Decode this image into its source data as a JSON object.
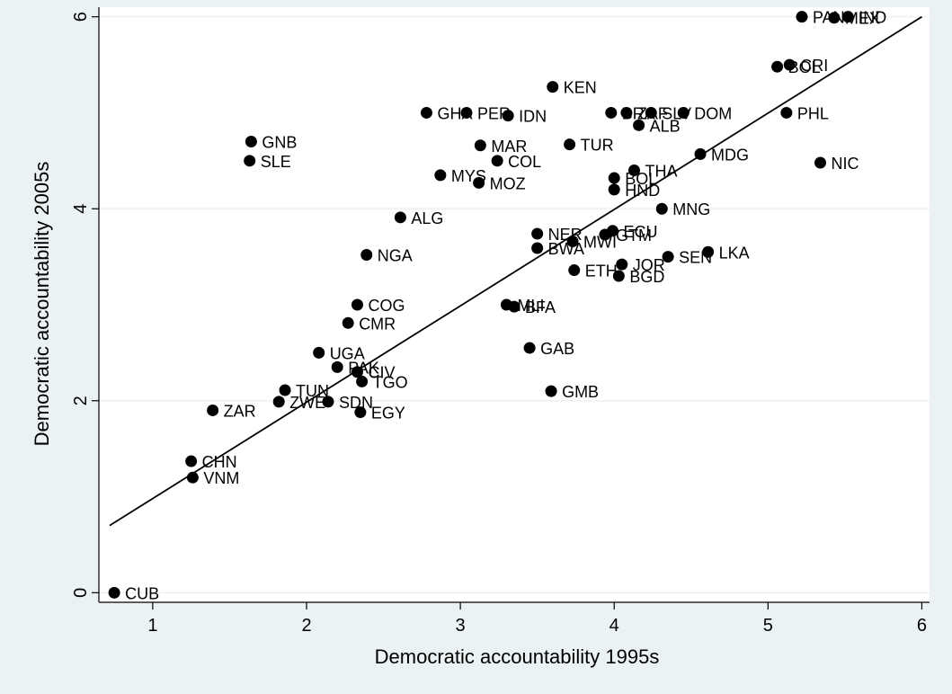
{
  "chart_data": {
    "type": "scatter",
    "xlabel": "Democratic accountability 1995s",
    "ylabel": "Democratic accountability 2005s",
    "xlim": [
      0.65,
      6.05
    ],
    "ylim": [
      -0.1,
      6.1
    ],
    "x_ticks": [
      "1",
      "2",
      "3",
      "4",
      "5",
      "6"
    ],
    "y_ticks": [
      "0",
      "2",
      "4",
      "6"
    ],
    "grid": "horizontal",
    "legend": "none",
    "fit_line": {
      "x": [
        0.72,
        6.0
      ],
      "y": [
        0.7,
        6.0
      ]
    },
    "points": [
      {
        "label": "CUB",
        "x": 0.75,
        "y": 0.0
      },
      {
        "label": "CHN",
        "x": 1.25,
        "y": 1.37
      },
      {
        "label": "VNM",
        "x": 1.26,
        "y": 1.2
      },
      {
        "label": "ZAR",
        "x": 1.39,
        "y": 1.9
      },
      {
        "label": "GNB",
        "x": 1.64,
        "y": 4.7
      },
      {
        "label": "SLE",
        "x": 1.63,
        "y": 4.5
      },
      {
        "label": "ZWE",
        "x": 1.82,
        "y": 1.99
      },
      {
        "label": "TUN",
        "x": 1.86,
        "y": 2.11
      },
      {
        "label": "UGA",
        "x": 2.08,
        "y": 2.5
      },
      {
        "label": "SDN",
        "x": 2.14,
        "y": 1.99
      },
      {
        "label": "PAK",
        "x": 2.2,
        "y": 2.35
      },
      {
        "label": "CMR",
        "x": 2.27,
        "y": 2.81
      },
      {
        "label": "CIV",
        "x": 2.33,
        "y": 2.3
      },
      {
        "label": "COG",
        "x": 2.33,
        "y": 3.0
      },
      {
        "label": "EGY",
        "x": 2.35,
        "y": 1.88
      },
      {
        "label": "TGO",
        "x": 2.36,
        "y": 2.2
      },
      {
        "label": "NGA",
        "x": 2.39,
        "y": 3.52
      },
      {
        "label": "ALG",
        "x": 2.61,
        "y": 3.91
      },
      {
        "label": "GHA",
        "x": 2.78,
        "y": 5.0
      },
      {
        "label": "MYS",
        "x": 2.87,
        "y": 4.35
      },
      {
        "label": "PER",
        "x": 3.04,
        "y": 5.0
      },
      {
        "label": "MOZ",
        "x": 3.12,
        "y": 4.27
      },
      {
        "label": "MAR",
        "x": 3.13,
        "y": 4.66
      },
      {
        "label": "COL",
        "x": 3.24,
        "y": 4.5
      },
      {
        "label": "MLI",
        "x": 3.3,
        "y": 3.0
      },
      {
        "label": "IDN",
        "x": 3.31,
        "y": 4.97
      },
      {
        "label": "BFA",
        "x": 3.35,
        "y": 2.98
      },
      {
        "label": "GAB",
        "x": 3.45,
        "y": 2.55
      },
      {
        "label": "NER",
        "x": 3.5,
        "y": 3.74
      },
      {
        "label": "BWA",
        "x": 3.5,
        "y": 3.59
      },
      {
        "label": "GMB",
        "x": 3.59,
        "y": 2.1
      },
      {
        "label": "KEN",
        "x": 3.6,
        "y": 5.27
      },
      {
        "label": "TUR",
        "x": 3.71,
        "y": 4.67
      },
      {
        "label": "MWI",
        "x": 3.73,
        "y": 3.66
      },
      {
        "label": "ETH",
        "x": 3.74,
        "y": 3.36
      },
      {
        "label": "GTM",
        "x": 3.94,
        "y": 3.73
      },
      {
        "label": "BRA",
        "x": 3.98,
        "y": 5.0
      },
      {
        "label": "ECU",
        "x": 3.99,
        "y": 3.77
      },
      {
        "label": "BOL",
        "x": 4.0,
        "y": 4.32
      },
      {
        "label": "HND",
        "x": 4.0,
        "y": 4.2
      },
      {
        "label": "BGD",
        "x": 4.03,
        "y": 3.3
      },
      {
        "label": "JOR",
        "x": 4.05,
        "y": 3.42
      },
      {
        "label": "ZAF",
        "x": 4.08,
        "y": 5.0
      },
      {
        "label": "THA",
        "x": 4.13,
        "y": 4.4
      },
      {
        "label": "ALB",
        "x": 4.16,
        "y": 4.87
      },
      {
        "label": "SLV",
        "x": 4.24,
        "y": 5.0
      },
      {
        "label": "MNG",
        "x": 4.31,
        "y": 4.0
      },
      {
        "label": "SEN",
        "x": 4.35,
        "y": 3.5
      },
      {
        "label": "DOM",
        "x": 4.45,
        "y": 5.0
      },
      {
        "label": "MDG",
        "x": 4.56,
        "y": 4.57
      },
      {
        "label": "LKA",
        "x": 4.61,
        "y": 3.55
      },
      {
        "label": "BOL",
        "x": 5.06,
        "y": 5.48
      },
      {
        "label": "PHL",
        "x": 5.12,
        "y": 5.0
      },
      {
        "label": "CRI",
        "x": 5.14,
        "y": 5.5
      },
      {
        "label": "PAN",
        "x": 5.22,
        "y": 6.0
      },
      {
        "label": "NIC",
        "x": 5.34,
        "y": 4.48
      },
      {
        "label": "MEX",
        "x": 5.43,
        "y": 5.99
      },
      {
        "label": "IND",
        "x": 5.52,
        "y": 6.0
      }
    ]
  },
  "colors": {
    "background": "#eaf2f3",
    "plot_background": "#ffffff",
    "grid": "#eaf2f3",
    "marker": "#000000",
    "line": "#000000"
  }
}
